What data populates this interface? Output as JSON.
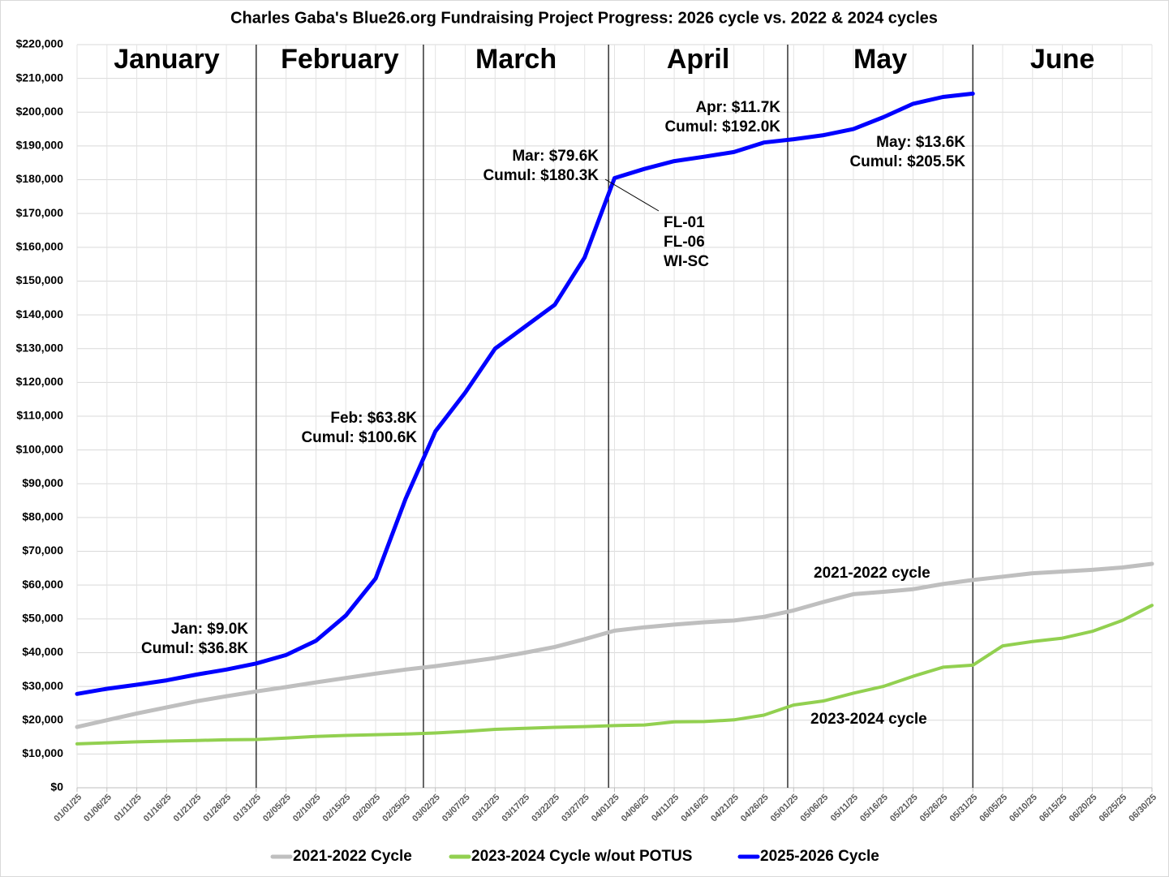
{
  "chart_data": {
    "type": "line",
    "title": "Charles Gaba's Blue26.org Fundraising Project Progress: 2026 cycle vs. 2022 & 2024 cycles",
    "categories": [
      "01/01/25",
      "01/06/25",
      "01/11/25",
      "01/16/25",
      "01/21/25",
      "01/26/25",
      "01/31/25",
      "02/05/25",
      "02/10/25",
      "02/15/25",
      "02/20/25",
      "02/25/25",
      "03/02/25",
      "03/07/25",
      "03/12/25",
      "03/17/25",
      "03/22/25",
      "03/27/25",
      "04/01/25",
      "04/06/25",
      "04/11/25",
      "04/16/25",
      "04/21/25",
      "04/26/25",
      "05/01/25",
      "05/06/25",
      "05/11/25",
      "05/16/25",
      "05/21/25",
      "05/26/25",
      "05/31/25",
      "06/05/25",
      "06/10/25",
      "06/15/25",
      "06/20/25",
      "06/25/25",
      "06/30/25"
    ],
    "series": [
      {
        "name": "2021-2022 Cycle",
        "color": "#bfbfbf",
        "values": [
          18000,
          20000,
          22000,
          23800,
          25600,
          27100,
          28500,
          29800,
          31200,
          32500,
          33800,
          35000,
          36000,
          37200,
          38400,
          40000,
          41700,
          44000,
          46500,
          47500,
          48300,
          49000,
          49500,
          50600,
          52500,
          55000,
          57300,
          58000,
          58800,
          60300,
          61500,
          62500,
          63500,
          64000,
          64500,
          65200,
          66300
        ]
      },
      {
        "name": "2023-2024 Cycle w/out POTUS",
        "color": "#92d050",
        "values": [
          13000,
          13300,
          13600,
          13800,
          14000,
          14200,
          14300,
          14700,
          15200,
          15500,
          15700,
          15900,
          16200,
          16700,
          17300,
          17600,
          17900,
          18100,
          18400,
          18600,
          19500,
          19600,
          20100,
          21500,
          24500,
          25700,
          28000,
          30000,
          33000,
          35700,
          36300,
          42000,
          43300,
          44300,
          46300,
          49500,
          54000
        ]
      },
      {
        "name": "2025-2026 Cycle",
        "color": "#0000ff",
        "values": [
          27800,
          29300,
          30500,
          31800,
          33500,
          35000,
          36800,
          39300,
          43500,
          51000,
          62000,
          85500,
          105500,
          117000,
          130000,
          136500,
          143000,
          157000,
          180500,
          183200,
          185500,
          186800,
          188200,
          191000,
          192000,
          193200,
          195000,
          198500,
          202500,
          204500,
          205500,
          null,
          null,
          null,
          null,
          null,
          null
        ]
      }
    ],
    "ylim": [
      0,
      220000
    ],
    "yticks": [
      {
        "value": 0,
        "label": "$0"
      },
      {
        "value": 10000,
        "label": "$10,000"
      },
      {
        "value": 20000,
        "label": "$20,000"
      },
      {
        "value": 30000,
        "label": "$30,000"
      },
      {
        "value": 40000,
        "label": "$40,000"
      },
      {
        "value": 50000,
        "label": "$50,000"
      },
      {
        "value": 60000,
        "label": "$60,000"
      },
      {
        "value": 70000,
        "label": "$70,000"
      },
      {
        "value": 80000,
        "label": "$80,000"
      },
      {
        "value": 90000,
        "label": "$90,000"
      },
      {
        "value": 100000,
        "label": "$100,000"
      },
      {
        "value": 110000,
        "label": "$110,000"
      },
      {
        "value": 120000,
        "label": "$120,000"
      },
      {
        "value": 130000,
        "label": "$130,000"
      },
      {
        "value": 140000,
        "label": "$140,000"
      },
      {
        "value": 150000,
        "label": "$150,000"
      },
      {
        "value": 160000,
        "label": "$160,000"
      },
      {
        "value": 170000,
        "label": "$170,000"
      },
      {
        "value": 180000,
        "label": "$180,000"
      },
      {
        "value": 190000,
        "label": "$190,000"
      },
      {
        "value": 200000,
        "label": "$200,000"
      },
      {
        "value": 210000,
        "label": "$210,000"
      },
      {
        "value": 220000,
        "label": "$220,000"
      }
    ],
    "grid": true,
    "legend": "bottom",
    "month_labels": [
      "January",
      "February",
      "March",
      "April",
      "May",
      "June"
    ],
    "annotations": [
      [
        "Jan: $9.0K",
        "Cumul: $36.8K"
      ],
      [
        "Feb: $63.8K",
        "Cumul: $100.6K"
      ],
      [
        "Mar: $79.6K",
        "Cumul: $180.3K"
      ],
      [
        "Apr: $11.7K",
        "Cumul: $192.0K"
      ],
      [
        "May: $13.6K",
        "Cumul: $205.5K"
      ],
      [
        "FL-01",
        "FL-06",
        "WI-SC"
      ]
    ],
    "line_labels": [
      "2021-2022 cycle",
      "2023-2024 cycle"
    ]
  }
}
